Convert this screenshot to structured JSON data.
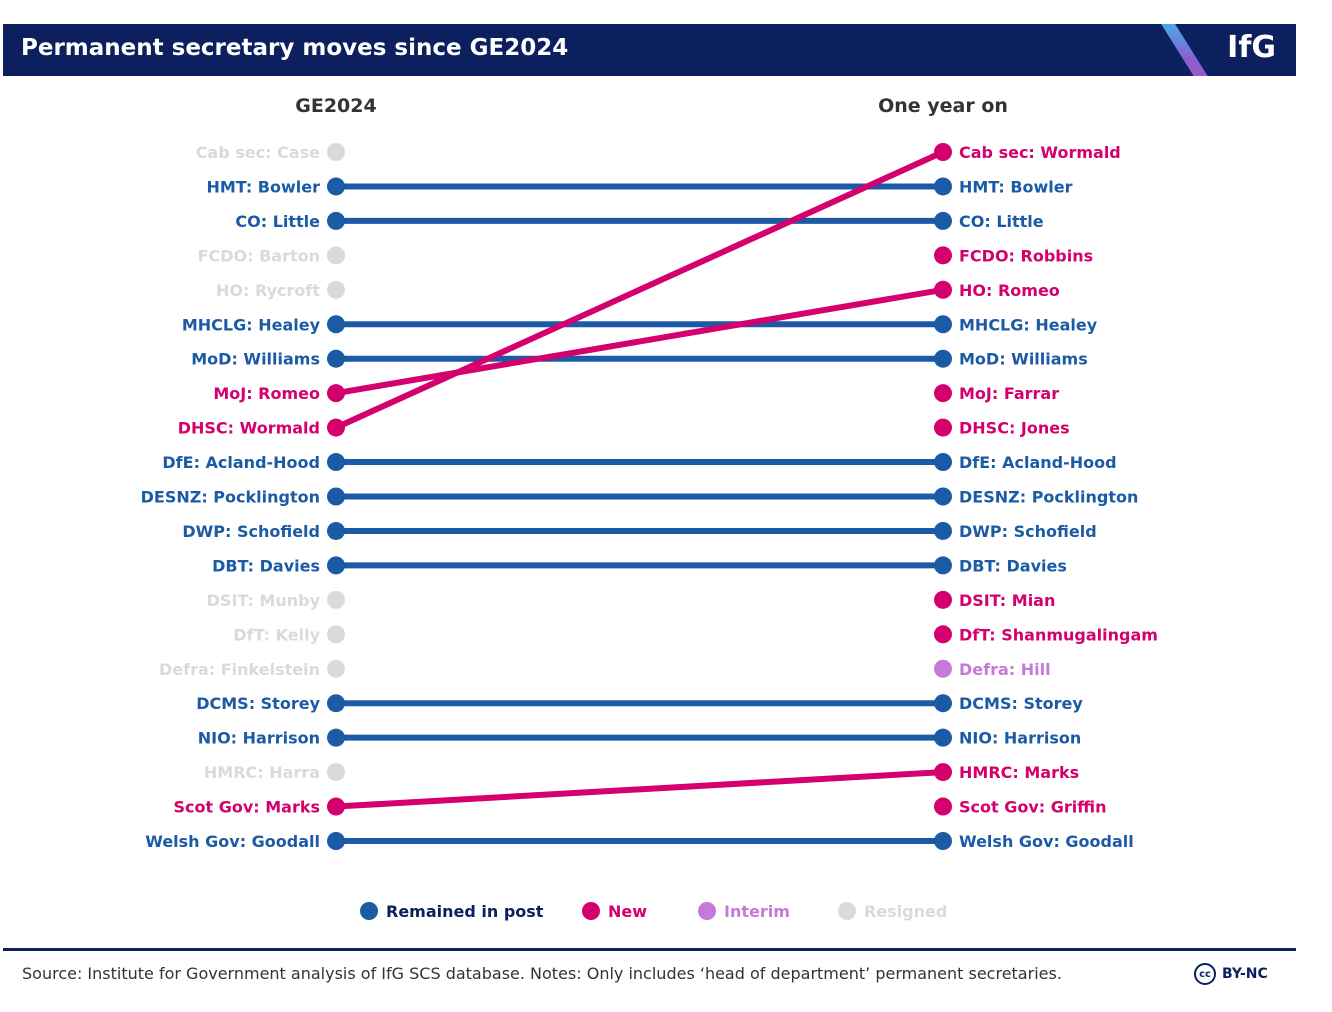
{
  "header": {
    "title": "Permanent secretary moves since GE2024",
    "logo": "IfG"
  },
  "chart_data": {
    "type": "slope",
    "title": "Permanent secretary moves since GE2024",
    "columns": [
      "GE2024",
      "One year on"
    ],
    "colors": {
      "remained": "#1b5ba6",
      "new": "#d4006e",
      "interim": "#c47ad6",
      "resigned": "#dadada"
    },
    "rows": [
      {
        "left": "Cab sec: Case",
        "left_status": "resigned",
        "right": "Cab sec: Wormald",
        "right_status": "new"
      },
      {
        "left": "HMT: Bowler",
        "left_status": "remained",
        "right": "HMT: Bowler",
        "right_status": "remained"
      },
      {
        "left": "CO: Little",
        "left_status": "remained",
        "right": "CO: Little",
        "right_status": "remained"
      },
      {
        "left": "FCDO: Barton",
        "left_status": "resigned",
        "right": "FCDO: Robbins",
        "right_status": "new"
      },
      {
        "left": "HO: Rycroft",
        "left_status": "resigned",
        "right": "HO: Romeo",
        "right_status": "new"
      },
      {
        "left": "MHCLG: Healey",
        "left_status": "remained",
        "right": "MHCLG: Healey",
        "right_status": "remained"
      },
      {
        "left": "MoD: Williams",
        "left_status": "remained",
        "right": "MoD: Williams",
        "right_status": "remained"
      },
      {
        "left": "MoJ: Romeo",
        "left_status": "new",
        "right": "MoJ: Farrar",
        "right_status": "new"
      },
      {
        "left": "DHSC: Wormald",
        "left_status": "new",
        "right": "DHSC: Jones",
        "right_status": "new"
      },
      {
        "left": "DfE: Acland-Hood",
        "left_status": "remained",
        "right": "DfE: Acland-Hood",
        "right_status": "remained"
      },
      {
        "left": "DESNZ: Pocklington",
        "left_status": "remained",
        "right": "DESNZ: Pocklington",
        "right_status": "remained"
      },
      {
        "left": "DWP: Schofield",
        "left_status": "remained",
        "right": "DWP: Schofield",
        "right_status": "remained"
      },
      {
        "left": "DBT: Davies",
        "left_status": "remained",
        "right": "DBT: Davies",
        "right_status": "remained"
      },
      {
        "left": "DSIT: Munby",
        "left_status": "resigned",
        "right": "DSIT: Mian",
        "right_status": "new"
      },
      {
        "left": "DfT: Kelly",
        "left_status": "resigned",
        "right": "DfT: Shanmugalingam",
        "right_status": "new"
      },
      {
        "left": "Defra: Finkelstein",
        "left_status": "resigned",
        "right": "Defra: Hill",
        "right_status": "interim"
      },
      {
        "left": "DCMS: Storey",
        "left_status": "remained",
        "right": "DCMS: Storey",
        "right_status": "remained"
      },
      {
        "left": "NIO: Harrison",
        "left_status": "remained",
        "right": "NIO: Harrison",
        "right_status": "remained"
      },
      {
        "left": "HMRC: Harra",
        "left_status": "resigned",
        "right": "HMRC: Marks",
        "right_status": "new"
      },
      {
        "left": "Scot Gov: Marks",
        "left_status": "new",
        "right": "Scot Gov: Griffin",
        "right_status": "new"
      },
      {
        "left": "Welsh Gov: Goodall",
        "left_status": "remained",
        "right": "Welsh Gov: Goodall",
        "right_status": "remained"
      }
    ],
    "moves": [
      {
        "from": "DHSC: Wormald",
        "to": "Cab sec: Wormald"
      },
      {
        "from": "MoJ: Romeo",
        "to": "HO: Romeo"
      },
      {
        "from": "Scot Gov: Marks",
        "to": "HMRC: Marks"
      }
    ],
    "legend": [
      {
        "label": "Remained in post",
        "status": "remained"
      },
      {
        "label": "New",
        "status": "new"
      },
      {
        "label": "Interim",
        "status": "interim"
      },
      {
        "label": "Resigned",
        "status": "resigned"
      }
    ]
  },
  "footer": {
    "source": "Source: Institute for Government analysis of IfG SCS database. Notes: Only includes ‘head of department’ permanent secretaries.",
    "license": "BY-NC",
    "license_icon": "cc"
  }
}
